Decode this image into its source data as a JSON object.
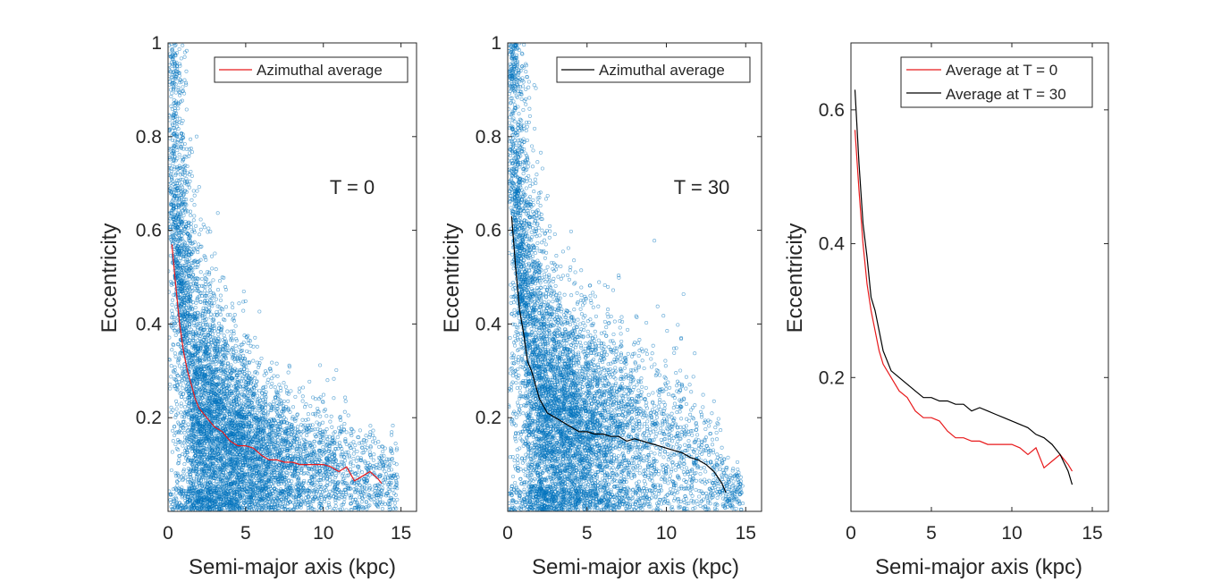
{
  "chart_data": [
    {
      "type": "scatter",
      "xlabel": "Semi-major axis (kpc)",
      "ylabel": "Eccentricity",
      "xlim": [
        0,
        16
      ],
      "ylim": [
        0,
        1
      ],
      "xticks": [
        0,
        5,
        10,
        15
      ],
      "yticks": [
        0.2,
        0.4,
        0.6,
        0.8,
        1
      ],
      "ytick_labels": [
        "0.2",
        "0.4",
        "0.6",
        "0.8",
        "1"
      ],
      "annotation": "T = 0",
      "legend_position": "top-right",
      "colors": {
        "scatter": "#0072BD",
        "line": "#e8191b"
      },
      "series": [
        {
          "name": "",
          "kind": "scatter",
          "description": "approximately 8000 particles; eccentricity decreasing with semi-major axis, dense at 0-6 kpc"
        },
        {
          "name": "Azimuthal average",
          "kind": "line",
          "x": [
            0.25,
            0.5,
            0.75,
            1.0,
            1.25,
            1.5,
            1.75,
            2.0,
            2.5,
            3.0,
            3.5,
            4.0,
            4.5,
            5.0,
            5.5,
            6.0,
            6.5,
            7.0,
            7.5,
            8.0,
            8.5,
            9.0,
            9.5,
            10.0,
            10.5,
            11.0,
            11.5,
            12.0,
            12.5,
            13.0,
            13.5,
            13.75
          ],
          "y": [
            0.57,
            0.48,
            0.4,
            0.34,
            0.3,
            0.27,
            0.24,
            0.22,
            0.2,
            0.18,
            0.17,
            0.15,
            0.14,
            0.14,
            0.135,
            0.12,
            0.11,
            0.11,
            0.105,
            0.105,
            0.1,
            0.1,
            0.1,
            0.1,
            0.095,
            0.085,
            0.095,
            0.065,
            0.075,
            0.085,
            0.07,
            0.06
          ]
        }
      ]
    },
    {
      "type": "scatter",
      "xlabel": "Semi-major axis (kpc)",
      "ylabel": "Eccentricity",
      "xlim": [
        0,
        16
      ],
      "ylim": [
        0,
        1
      ],
      "xticks": [
        0,
        5,
        10,
        15
      ],
      "yticks": [
        0.2,
        0.4,
        0.6,
        0.8,
        1
      ],
      "ytick_labels": [
        "0.2",
        "0.4",
        "0.6",
        "0.8",
        "1"
      ],
      "annotation": "T = 30",
      "legend_position": "top-right",
      "colors": {
        "scatter": "#0072BD",
        "line": "#000000"
      },
      "series": [
        {
          "name": "",
          "kind": "scatter",
          "description": "approximately 8000 particles; eccentricity decreasing with semi-major axis, slightly more spread than T = 0"
        },
        {
          "name": "Azimuthal average",
          "kind": "line",
          "x": [
            0.25,
            0.5,
            0.75,
            1.0,
            1.25,
            1.5,
            1.75,
            2.0,
            2.5,
            3.0,
            3.5,
            4.0,
            4.5,
            5.0,
            5.5,
            6.0,
            6.5,
            7.0,
            7.5,
            8.0,
            8.5,
            9.0,
            9.5,
            10.0,
            10.5,
            11.0,
            11.5,
            12.0,
            12.5,
            13.0,
            13.5,
            13.75
          ],
          "y": [
            0.63,
            0.52,
            0.43,
            0.38,
            0.32,
            0.3,
            0.27,
            0.24,
            0.21,
            0.2,
            0.19,
            0.18,
            0.17,
            0.17,
            0.165,
            0.165,
            0.16,
            0.16,
            0.15,
            0.155,
            0.15,
            0.145,
            0.14,
            0.135,
            0.13,
            0.125,
            0.115,
            0.11,
            0.1,
            0.085,
            0.06,
            0.04
          ]
        }
      ]
    },
    {
      "type": "line",
      "xlabel": "Semi-major axis (kpc)",
      "ylabel": "Eccentricity",
      "xlim": [
        0,
        16
      ],
      "ylim": [
        0,
        0.7
      ],
      "xticks": [
        0,
        5,
        10,
        15
      ],
      "yticks": [
        0.2,
        0.4,
        0.6
      ],
      "ytick_labels": [
        "0.2",
        "0.4",
        "0.6"
      ],
      "legend_position": "top-right",
      "series": [
        {
          "name": "Average at T = 0",
          "color": "#e8191b",
          "x": [
            0.25,
            0.5,
            0.75,
            1.0,
            1.25,
            1.5,
            1.75,
            2.0,
            2.5,
            3.0,
            3.5,
            4.0,
            4.5,
            5.0,
            5.5,
            6.0,
            6.5,
            7.0,
            7.5,
            8.0,
            8.5,
            9.0,
            9.5,
            10.0,
            10.5,
            11.0,
            11.5,
            12.0,
            12.5,
            13.0,
            13.5,
            13.75
          ],
          "y": [
            0.57,
            0.48,
            0.4,
            0.34,
            0.3,
            0.27,
            0.24,
            0.22,
            0.2,
            0.18,
            0.17,
            0.15,
            0.14,
            0.14,
            0.135,
            0.12,
            0.11,
            0.11,
            0.105,
            0.105,
            0.1,
            0.1,
            0.1,
            0.1,
            0.095,
            0.085,
            0.095,
            0.065,
            0.075,
            0.085,
            0.07,
            0.06
          ]
        },
        {
          "name": "Average at T = 30",
          "color": "#000000",
          "x": [
            0.25,
            0.5,
            0.75,
            1.0,
            1.25,
            1.5,
            1.75,
            2.0,
            2.5,
            3.0,
            3.5,
            4.0,
            4.5,
            5.0,
            5.5,
            6.0,
            6.5,
            7.0,
            7.5,
            8.0,
            8.5,
            9.0,
            9.5,
            10.0,
            10.5,
            11.0,
            11.5,
            12.0,
            12.5,
            13.0,
            13.5,
            13.75
          ],
          "y": [
            0.63,
            0.52,
            0.43,
            0.38,
            0.32,
            0.3,
            0.27,
            0.24,
            0.21,
            0.2,
            0.19,
            0.18,
            0.17,
            0.17,
            0.165,
            0.165,
            0.16,
            0.16,
            0.15,
            0.155,
            0.15,
            0.145,
            0.14,
            0.135,
            0.13,
            0.125,
            0.115,
            0.11,
            0.1,
            0.085,
            0.06,
            0.04
          ]
        }
      ]
    }
  ]
}
